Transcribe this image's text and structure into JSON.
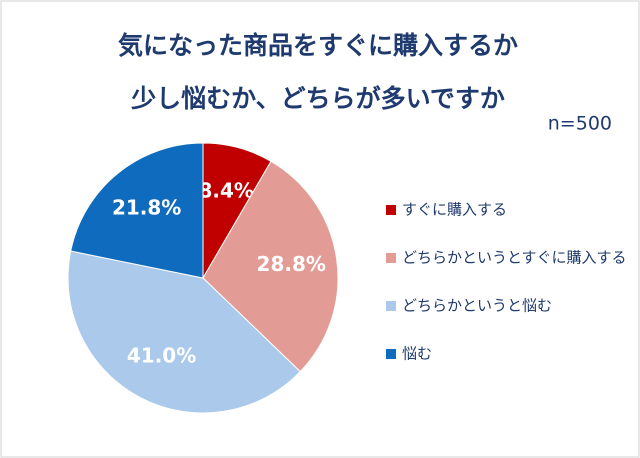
{
  "chart_data": {
    "type": "pie",
    "title": [
      "気になった商品をすぐに購入するか",
      "少し悩むか、どちらが多いですか"
    ],
    "subtitle": "n=500",
    "categories": [
      "すぐに購入する",
      "どちらかというとすぐに購入する",
      "どちらかというと悩む",
      "悩む"
    ],
    "values": [
      8.4,
      28.8,
      41.0,
      21.8
    ],
    "value_labels": [
      "8.4%",
      "28.8%",
      "41.0%",
      "21.8%"
    ],
    "colors": [
      "#c00000",
      "#e29c95",
      "#abc9ea",
      "#0e6bbd"
    ],
    "legend": "right"
  }
}
